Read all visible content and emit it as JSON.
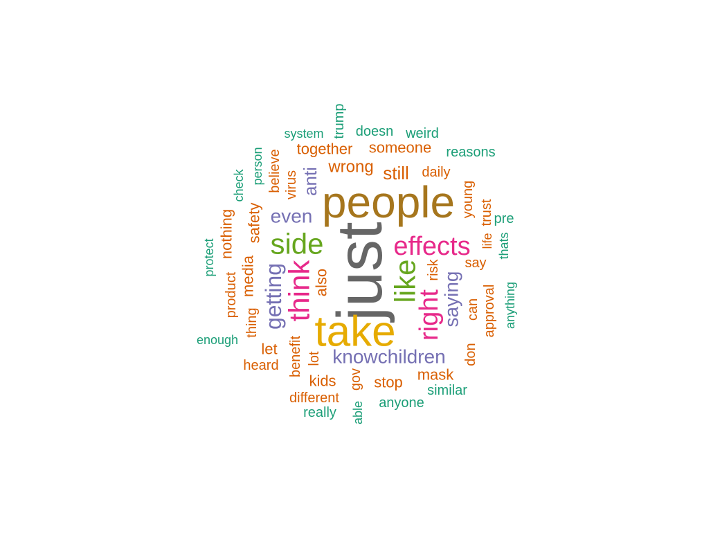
{
  "palette": {
    "teal": "#1b9e77",
    "orange": "#d95f02",
    "purple": "#7570b3",
    "pink": "#e7298a",
    "green": "#66a61e",
    "gold": "#e6ab02",
    "brown": "#a6761d",
    "gray": "#666666"
  },
  "words": [
    {
      "text": "just",
      "color": "gray"
    },
    {
      "text": "people",
      "color": "brown"
    },
    {
      "text": "take",
      "color": "gold"
    },
    {
      "text": "side",
      "color": "green"
    },
    {
      "text": "effects",
      "color": "pink"
    },
    {
      "text": "like",
      "color": "green"
    },
    {
      "text": "think",
      "color": "pink"
    },
    {
      "text": "right",
      "color": "pink"
    },
    {
      "text": "knowchildren",
      "color": "purple"
    },
    {
      "text": "getting",
      "color": "purple"
    },
    {
      "text": "even",
      "color": "purple"
    },
    {
      "text": "saying",
      "color": "purple"
    },
    {
      "text": "anti",
      "color": "purple"
    },
    {
      "text": "still",
      "color": "orange"
    },
    {
      "text": "wrong",
      "color": "orange"
    },
    {
      "text": "someone",
      "color": "orange"
    },
    {
      "text": "together",
      "color": "orange"
    },
    {
      "text": "safety",
      "color": "orange"
    },
    {
      "text": "media",
      "color": "orange"
    },
    {
      "text": "also",
      "color": "orange"
    },
    {
      "text": "kids",
      "color": "orange"
    },
    {
      "text": "stop",
      "color": "orange"
    },
    {
      "text": "mask",
      "color": "orange"
    },
    {
      "text": "different",
      "color": "orange"
    },
    {
      "text": "let",
      "color": "orange"
    },
    {
      "text": "heard",
      "color": "orange"
    },
    {
      "text": "benefit",
      "color": "orange"
    },
    {
      "text": "lot",
      "color": "orange"
    },
    {
      "text": "gov",
      "color": "orange"
    },
    {
      "text": "risk",
      "color": "orange"
    },
    {
      "text": "can",
      "color": "orange"
    },
    {
      "text": "approval",
      "color": "orange"
    },
    {
      "text": "don",
      "color": "orange"
    },
    {
      "text": "say",
      "color": "orange"
    },
    {
      "text": "life",
      "color": "orange"
    },
    {
      "text": "trust",
      "color": "orange"
    },
    {
      "text": "young",
      "color": "orange"
    },
    {
      "text": "daily",
      "color": "orange"
    },
    {
      "text": "nothing",
      "color": "orange"
    },
    {
      "text": "product",
      "color": "orange"
    },
    {
      "text": "thing",
      "color": "orange"
    },
    {
      "text": "believe",
      "color": "orange"
    },
    {
      "text": "virus",
      "color": "orange"
    },
    {
      "text": "doesn",
      "color": "teal"
    },
    {
      "text": "weird",
      "color": "teal"
    },
    {
      "text": "system",
      "color": "teal"
    },
    {
      "text": "trump",
      "color": "teal"
    },
    {
      "text": "reasons",
      "color": "teal"
    },
    {
      "text": "person",
      "color": "teal"
    },
    {
      "text": "check",
      "color": "teal"
    },
    {
      "text": "protect",
      "color": "teal"
    },
    {
      "text": "enough",
      "color": "teal"
    },
    {
      "text": "really",
      "color": "teal"
    },
    {
      "text": "able",
      "color": "teal"
    },
    {
      "text": "anyone",
      "color": "teal"
    },
    {
      "text": "similar",
      "color": "teal"
    },
    {
      "text": "pre",
      "color": "teal"
    },
    {
      "text": "thats",
      "color": "teal"
    },
    {
      "text": "anything",
      "color": "teal"
    }
  ]
}
